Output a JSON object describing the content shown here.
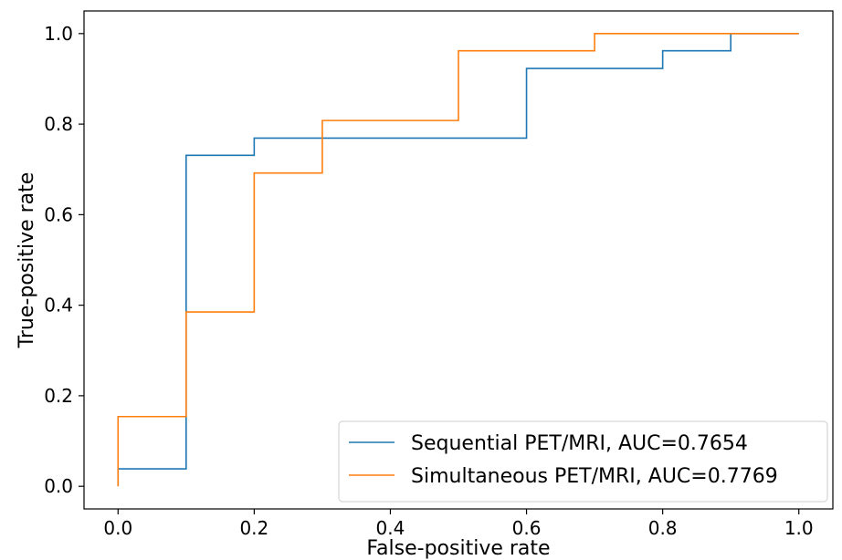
{
  "chart_data": {
    "type": "line",
    "title": "",
    "xlabel": "False-positive rate",
    "ylabel": "True-positive rate",
    "xlim": [
      -0.05,
      1.05
    ],
    "ylim": [
      -0.05,
      1.05
    ],
    "xticks": [
      0.0,
      0.2,
      0.4,
      0.6,
      0.8,
      1.0
    ],
    "yticks": [
      0.0,
      0.2,
      0.4,
      0.6,
      0.8,
      1.0
    ],
    "xtick_labels": [
      "0.0",
      "0.2",
      "0.4",
      "0.6",
      "0.8",
      "1.0"
    ],
    "ytick_labels": [
      "0.0",
      "0.2",
      "0.4",
      "0.6",
      "0.8",
      "1.0"
    ],
    "grid": false,
    "legend_position": "bottom-right",
    "series": [
      {
        "name": "Sequential PET/MRI, AUC=0.7654",
        "color": "#1f77b4",
        "x": [
          0.0,
          0.0,
          0.1,
          0.1,
          0.2,
          0.2,
          0.6,
          0.6,
          0.8,
          0.8,
          0.9,
          0.9,
          1.0
        ],
        "y": [
          0.0,
          0.0385,
          0.0385,
          0.731,
          0.731,
          0.769,
          0.769,
          0.923,
          0.923,
          0.962,
          0.962,
          1.0,
          1.0
        ]
      },
      {
        "name": "Simultaneous PET/MRI, AUC=0.7769",
        "color": "#ff7f0e",
        "x": [
          0.0,
          0.0,
          0.1,
          0.1,
          0.2,
          0.2,
          0.3,
          0.3,
          0.5,
          0.5,
          0.7,
          0.7,
          1.0
        ],
        "y": [
          0.0,
          0.154,
          0.154,
          0.385,
          0.385,
          0.692,
          0.692,
          0.808,
          0.808,
          0.962,
          0.962,
          1.0,
          1.0
        ]
      }
    ]
  }
}
